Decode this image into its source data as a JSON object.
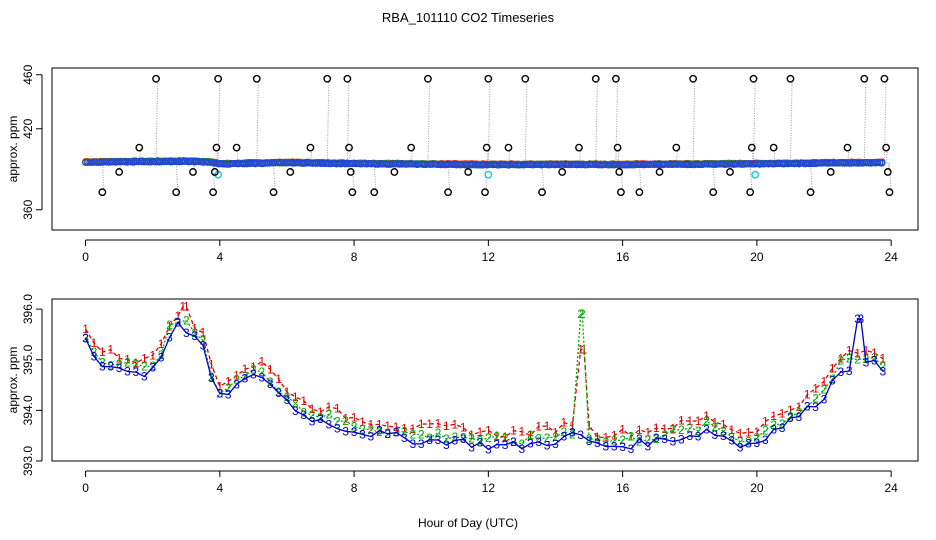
{
  "title": "RBA_101110  CO2 Timeseries",
  "xlabel": "Hour of Day (UTC)",
  "chart_data": [
    {
      "type": "scatter",
      "name": "top-panel",
      "ylabel": "approx. ppm",
      "xlim": [
        -1,
        24.8
      ],
      "ylim": [
        345,
        465
      ],
      "x_ticks": [
        0,
        4,
        8,
        12,
        16,
        20,
        24
      ],
      "y_ticks": [
        360,
        420,
        460
      ],
      "y_tick_labels": [
        "360",
        "420",
        "460"
      ],
      "baseline": [
        [
          0.0,
          395.2
        ],
        [
          3.0,
          395.8
        ],
        [
          3.7,
          395.3
        ],
        [
          4.0,
          393.8
        ],
        [
          6.0,
          394.8
        ],
        [
          8.0,
          394.1
        ],
        [
          12.0,
          393.3
        ],
        [
          14.7,
          393.5
        ],
        [
          16.0,
          393.4
        ],
        [
          20.0,
          393.9
        ],
        [
          22.5,
          394.6
        ],
        [
          23.7,
          394.8
        ]
      ],
      "outliers": [
        [
          0.5,
          373
        ],
        [
          1.0,
          388
        ],
        [
          1.6,
          406
        ],
        [
          2.1,
          457
        ],
        [
          2.7,
          373
        ],
        [
          3.2,
          388
        ],
        [
          3.8,
          373
        ],
        [
          3.85,
          388
        ],
        [
          3.9,
          406
        ],
        [
          3.95,
          457
        ],
        [
          4.5,
          406
        ],
        [
          5.1,
          457
        ],
        [
          5.6,
          373
        ],
        [
          6.1,
          388
        ],
        [
          6.7,
          406
        ],
        [
          7.2,
          457
        ],
        [
          7.8,
          457
        ],
        [
          7.85,
          406
        ],
        [
          7.9,
          388
        ],
        [
          7.95,
          373
        ],
        [
          8.6,
          373
        ],
        [
          9.2,
          388
        ],
        [
          9.7,
          406
        ],
        [
          10.2,
          457
        ],
        [
          10.8,
          373
        ],
        [
          11.4,
          388
        ],
        [
          11.9,
          373
        ],
        [
          11.95,
          406
        ],
        [
          12.0,
          457
        ],
        [
          12.6,
          406
        ],
        [
          13.1,
          457
        ],
        [
          13.6,
          373
        ],
        [
          14.2,
          388
        ],
        [
          14.7,
          406
        ],
        [
          15.2,
          457
        ],
        [
          15.8,
          457
        ],
        [
          15.85,
          406
        ],
        [
          15.9,
          388
        ],
        [
          15.95,
          373
        ],
        [
          16.5,
          373
        ],
        [
          17.1,
          388
        ],
        [
          17.6,
          406
        ],
        [
          18.1,
          457
        ],
        [
          18.7,
          373
        ],
        [
          19.2,
          388
        ],
        [
          19.8,
          373
        ],
        [
          19.85,
          406
        ],
        [
          19.9,
          457
        ],
        [
          20.5,
          406
        ],
        [
          21.0,
          457
        ],
        [
          21.6,
          373
        ],
        [
          22.2,
          388
        ],
        [
          22.7,
          406
        ],
        [
          23.2,
          457
        ],
        [
          23.8,
          457
        ],
        [
          23.85,
          406
        ],
        [
          23.9,
          388
        ],
        [
          23.95,
          373
        ]
      ],
      "cyan_points": [
        [
          3.95,
          386
        ],
        [
          12.0,
          386
        ],
        [
          19.95,
          386
        ]
      ]
    },
    {
      "type": "line",
      "name": "bottom-panel",
      "ylabel": "approx. ppm",
      "xlim": [
        -1,
        24.8
      ],
      "ylim": [
        393.0,
        396.2
      ],
      "x_ticks": [
        0,
        4,
        8,
        12,
        16,
        20,
        24
      ],
      "y_ticks": [
        393.0,
        394.0,
        395.0,
        396.0
      ],
      "y_tick_labels": [
        "393.0",
        "394.0",
        "395.0",
        "396.0"
      ],
      "series": [
        {
          "name": "1",
          "color": "#dd0000",
          "offset": 0.25
        },
        {
          "name": "2",
          "color": "#00aa00",
          "offset": 0.1
        },
        {
          "name": "3",
          "color": "#0000cc",
          "offset": 0.0
        }
      ],
      "base_curve": [
        [
          0.0,
          395.4
        ],
        [
          0.3,
          395.0
        ],
        [
          0.6,
          394.9
        ],
        [
          1.2,
          394.8
        ],
        [
          1.8,
          394.7
        ],
        [
          2.2,
          395.0
        ],
        [
          2.5,
          395.5
        ],
        [
          2.8,
          395.7
        ],
        [
          3.2,
          395.5
        ],
        [
          3.6,
          395.1
        ],
        [
          3.9,
          394.2
        ],
        [
          4.3,
          394.4
        ],
        [
          4.8,
          394.6
        ],
        [
          5.3,
          394.7
        ],
        [
          5.8,
          394.3
        ],
        [
          6.5,
          393.9
        ],
        [
          7.0,
          393.8
        ],
        [
          7.5,
          393.7
        ],
        [
          8.0,
          393.6
        ],
        [
          9.0,
          393.5
        ],
        [
          10.0,
          393.4
        ],
        [
          11.0,
          393.4
        ],
        [
          12.0,
          393.3
        ],
        [
          13.0,
          393.3
        ],
        [
          14.0,
          393.4
        ],
        [
          14.5,
          393.5
        ],
        [
          14.8,
          393.5
        ],
        [
          15.2,
          393.3
        ],
        [
          16.0,
          393.3
        ],
        [
          17.0,
          393.4
        ],
        [
          18.0,
          393.5
        ],
        [
          18.5,
          393.6
        ],
        [
          19.0,
          393.5
        ],
        [
          19.5,
          393.3
        ],
        [
          20.0,
          393.4
        ],
        [
          20.5,
          393.6
        ],
        [
          21.0,
          393.8
        ],
        [
          21.5,
          394.0
        ],
        [
          22.0,
          394.3
        ],
        [
          22.5,
          394.8
        ],
        [
          23.0,
          394.9
        ],
        [
          23.5,
          394.9
        ],
        [
          23.7,
          394.8
        ]
      ],
      "spikes": [
        {
          "series": "2",
          "x": 14.8,
          "y": 395.9
        },
        {
          "series": "1",
          "x": 14.85,
          "y": 395.2
        },
        {
          "series": "3",
          "x": 23.1,
          "y": 395.8
        },
        {
          "series": "1",
          "x": 2.9,
          "y": 396.05
        }
      ]
    }
  ]
}
